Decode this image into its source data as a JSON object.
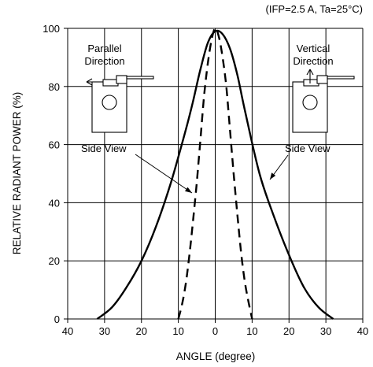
{
  "chart_data": {
    "type": "line",
    "conditions": "(IFP=2.5 A, Ta=25°C)",
    "xlabel": "ANGLE (degree)",
    "ylabel": "RELATIVE RADIANT POWER (%)",
    "xlim": [
      -40,
      40
    ],
    "ylim": [
      0,
      100
    ],
    "x_ticks": [
      -40,
      -30,
      -20,
      -10,
      0,
      10,
      20,
      30,
      40
    ],
    "x_tick_labels": [
      "40",
      "30",
      "20",
      "10",
      "0",
      "10",
      "20",
      "30",
      "40"
    ],
    "y_ticks": [
      0,
      20,
      40,
      60,
      80,
      100
    ],
    "y_tick_labels": [
      "0",
      "20",
      "40",
      "60",
      "80",
      "100"
    ],
    "grid": true,
    "series": [
      {
        "name": "Vertical Direction",
        "style": "solid",
        "x": [
          -32,
          -28,
          -24,
          -20,
          -16,
          -12,
          -8,
          -6,
          -4,
          -2,
          0,
          2,
          4,
          6,
          8,
          12,
          16,
          20,
          24,
          28,
          32
        ],
        "y": [
          0,
          4,
          11,
          20,
          32,
          47,
          65,
          75,
          86,
          95,
          99,
          98,
          93,
          84,
          72,
          50,
          35,
          22,
          11,
          4,
          0
        ]
      },
      {
        "name": "Parallel Direction",
        "style": "dashed",
        "x": [
          -10,
          -9,
          -8,
          -7,
          -6,
          -5,
          -4,
          -3,
          -2,
          -1,
          0,
          1,
          2,
          3,
          4,
          5,
          6,
          7,
          8,
          9,
          10
        ],
        "y": [
          0,
          5,
          12,
          22,
          34,
          47,
          62,
          77,
          88,
          96,
          100,
          97,
          90,
          80,
          65,
          50,
          36,
          23,
          13,
          6,
          0
        ]
      }
    ],
    "annotations": {
      "parallel_title": [
        "Parallel",
        "Direction"
      ],
      "vertical_title": [
        "Vertical",
        "Direction"
      ],
      "side_view_left": "Side View",
      "side_view_right": "Side View"
    }
  }
}
